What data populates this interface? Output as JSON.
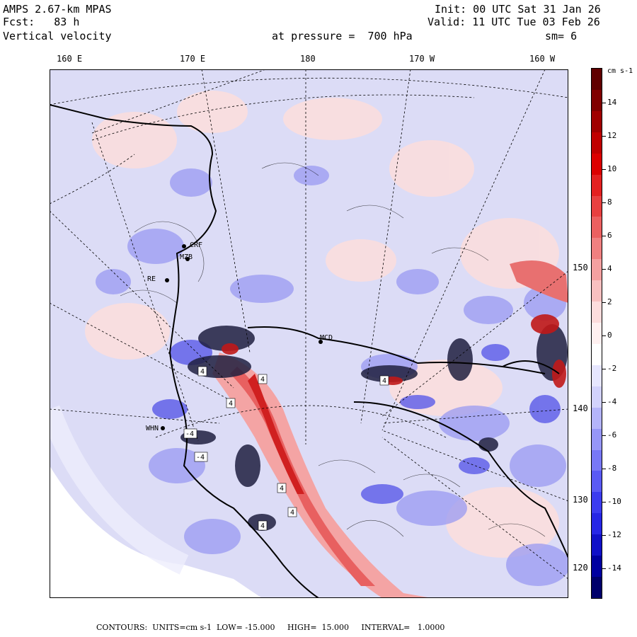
{
  "header": {
    "model": "AMPS 2.67-km MPAS",
    "fcst": "Fcst:   83 h",
    "field": "Vertical velocity",
    "pressure": "at pressure =  700 hPa",
    "init": "Init: 00 UTC Sat 31 Jan 26",
    "valid": "Valid: 11 UTC Tue 03 Feb 26",
    "smooth": "sm= 6"
  },
  "lon_labels": [
    "160 E",
    "170 E",
    "180",
    "170 W",
    "160 W"
  ],
  "lat_labels": [
    "150 W",
    "140 W",
    "130 W",
    "120 W"
  ],
  "stations": [
    "CRF",
    "MZB",
    "RE",
    "MCD",
    "WHN"
  ],
  "contour_labels": [
    "4",
    "4",
    "4",
    "4",
    "4",
    "-4",
    "-4",
    "4",
    "4"
  ],
  "colorbar": {
    "unit": "cm s-1",
    "ticks": [
      "14",
      "12",
      "10",
      "8",
      "6",
      "4",
      "2",
      "0",
      "-2",
      "-4",
      "-6",
      "-8",
      "-10",
      "-12",
      "-14"
    ],
    "colors": [
      "#00006b",
      "#0000a0",
      "#1010c8",
      "#2626e6",
      "#3c3cf0",
      "#5a5af4",
      "#7878f6",
      "#9696f8",
      "#b4b4fa",
      "#d2d2fc",
      "#e6e6fe",
      "#ffffff",
      "#fff0f0",
      "#fcdcdc",
      "#f8c0c0",
      "#f4a0a0",
      "#f08080",
      "#ec6060",
      "#e84040",
      "#e42020",
      "#dc0000",
      "#c00000",
      "#a00000",
      "#800000",
      "#600000"
    ]
  },
  "colors": {
    "land_background": "#dcdcf6",
    "positive": "#f0a0a0",
    "negative": "#6a6ae6"
  },
  "footer": "CONTOURS:  UNITS=cm s-1  LOW= -15.000     HIGH=  15.000     INTERVAL=   1.0000"
}
